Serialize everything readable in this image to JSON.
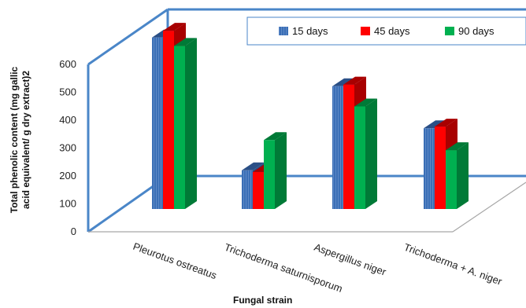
{
  "chart_data": {
    "type": "bar",
    "title": "",
    "xlabel": "Fungal strain",
    "ylabel": "Total phenolic content (mg gallic acid equivalent/ g dry extract)2",
    "ylabel_lines": [
      "Total phenolic content (mg gallic",
      "acid equivalent/ g dry extract)2"
    ],
    "categories": [
      "Pleurotus ostreatus",
      "Trichoderma saturnisporum",
      "Aspergillus niger",
      "Trichoderma + A. niger"
    ],
    "series": [
      {
        "name": "15 days",
        "values": [
          510,
          115,
          365,
          240
        ],
        "color": "#3b6fb6",
        "side_color": "#2a4f86",
        "hatched": true
      },
      {
        "name": "45 days",
        "values": [
          530,
          110,
          370,
          245
        ],
        "color": "#ff0000",
        "side_color": "#a80000",
        "hatched": false
      },
      {
        "name": "90 days",
        "values": [
          485,
          205,
          305,
          175
        ],
        "color": "#00b050",
        "side_color": "#007a37",
        "hatched": false
      }
    ],
    "yticks": [
      0,
      100,
      200,
      300,
      400,
      500,
      600
    ],
    "ylim": [
      0,
      600
    ],
    "legend_position": "top-right",
    "frame_color": "#4a86c8",
    "floor_color": "#a6a6a6"
  }
}
